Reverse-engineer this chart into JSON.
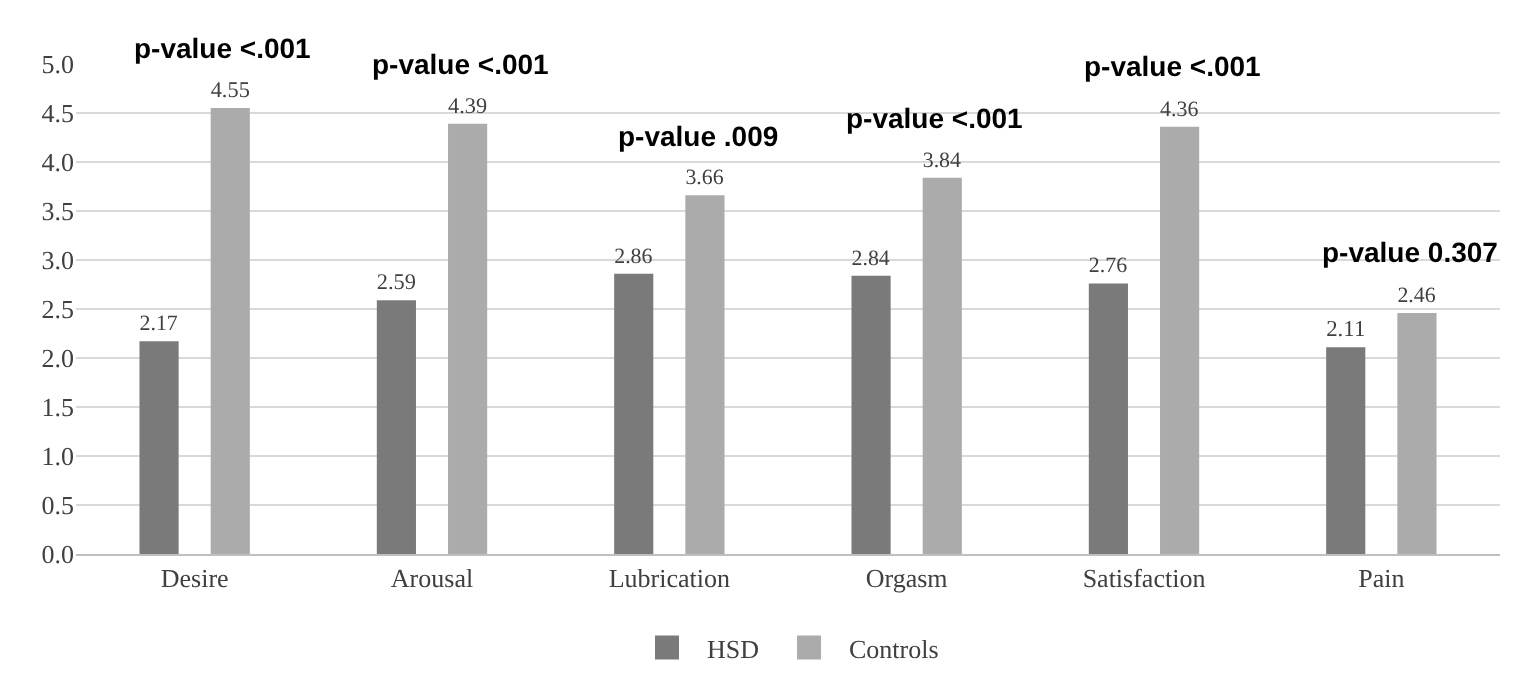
{
  "chart_data": {
    "type": "bar",
    "categories": [
      "Desire",
      "Arousal",
      "Lubrication",
      "Orgasm",
      "Satisfaction",
      "Pain"
    ],
    "series": [
      {
        "name": "HSD",
        "color": "#7a7a7a",
        "values": [
          2.17,
          2.59,
          2.86,
          2.84,
          2.76,
          2.11
        ]
      },
      {
        "name": "Controls",
        "color": "#ababab",
        "values": [
          4.55,
          4.39,
          3.66,
          3.84,
          4.36,
          2.46
        ]
      }
    ],
    "ylim": [
      0,
      5
    ],
    "yticks": [
      {
        "value": 0,
        "label": "0.0"
      },
      {
        "value": 0.5,
        "label": "0.5"
      },
      {
        "value": 1,
        "label": "1.0"
      },
      {
        "value": 1.5,
        "label": "1.5"
      },
      {
        "value": 2,
        "label": "2.0"
      },
      {
        "value": 2.5,
        "label": "2.5"
      },
      {
        "value": 3,
        "label": "3.0"
      },
      {
        "value": 3.5,
        "label": "3.5"
      },
      {
        "value": 4,
        "label": "4.0"
      },
      {
        "value": 4.5,
        "label": "4.5"
      },
      {
        "value": 5,
        "label": "5.0"
      }
    ],
    "grid": "y",
    "legend": "bottom",
    "data_labels": true,
    "annotations": [
      "p-value <.001",
      "p-value <.001",
      "p-value .009",
      "p-value <.001",
      "p-value <.001",
      "p-value 0.307"
    ]
  }
}
